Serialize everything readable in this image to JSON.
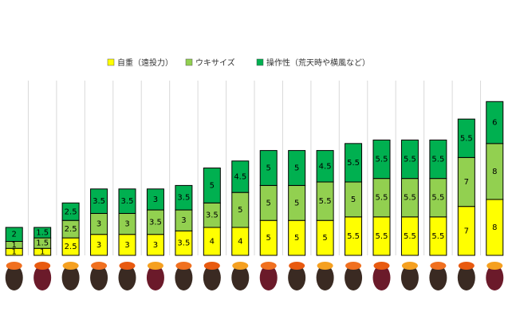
{
  "chart_data": {
    "type": "bar",
    "stacked": true,
    "categories": [
      null,
      null,
      null,
      null,
      null,
      null,
      null,
      null,
      null,
      null,
      null,
      null,
      null,
      null,
      null,
      null,
      null,
      null
    ],
    "series": [
      {
        "name": "自重（遠投力）",
        "color": "#ffff00",
        "values": [
          1,
          1,
          2.5,
          3,
          3,
          3,
          3.5,
          4,
          4,
          5,
          5,
          5,
          5.5,
          5.5,
          5.5,
          5.5,
          7,
          8
        ]
      },
      {
        "name": "ウキサイズ",
        "color": "#92d050",
        "values": [
          1,
          1.5,
          2.5,
          3,
          3,
          3.5,
          3,
          3.5,
          5,
          5,
          5,
          5.5,
          5,
          5.5,
          5.5,
          5.5,
          7,
          8
        ]
      },
      {
        "name": "操作性（荒天時や横風など）",
        "color": "#00b050",
        "values": [
          2,
          1.5,
          2.5,
          3.5,
          3.5,
          3,
          3.5,
          5,
          4.5,
          5,
          5,
          4.5,
          5.5,
          5.5,
          5.5,
          5.5,
          5.5,
          6
        ]
      }
    ],
    "ylim": [
      0,
      25
    ],
    "legend": "top"
  }
}
